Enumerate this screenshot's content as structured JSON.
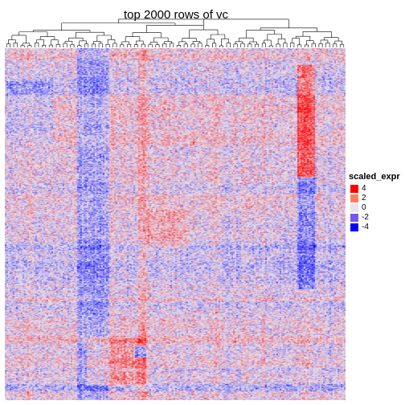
{
  "chart_data": {
    "type": "heatmap",
    "title": "top 2000 rows of vc",
    "n_rows": 2000,
    "row_dendrogram": false,
    "column_dendrogram": true,
    "color_scale": {
      "name": "scaled_expr",
      "breaks": [
        {
          "value": 4,
          "label": "4",
          "color": "#ff0000"
        },
        {
          "value": 2,
          "label": "2",
          "color": "#ff7f5e"
        },
        {
          "value": 0,
          "label": "0",
          "color": "#e8e3ee"
        },
        {
          "value": -2,
          "label": "-2",
          "color": "#7a53f5"
        },
        {
          "value": -4,
          "label": "-4",
          "color": "#0000ff"
        }
      ]
    },
    "grid": false,
    "legend_position": "right"
  }
}
